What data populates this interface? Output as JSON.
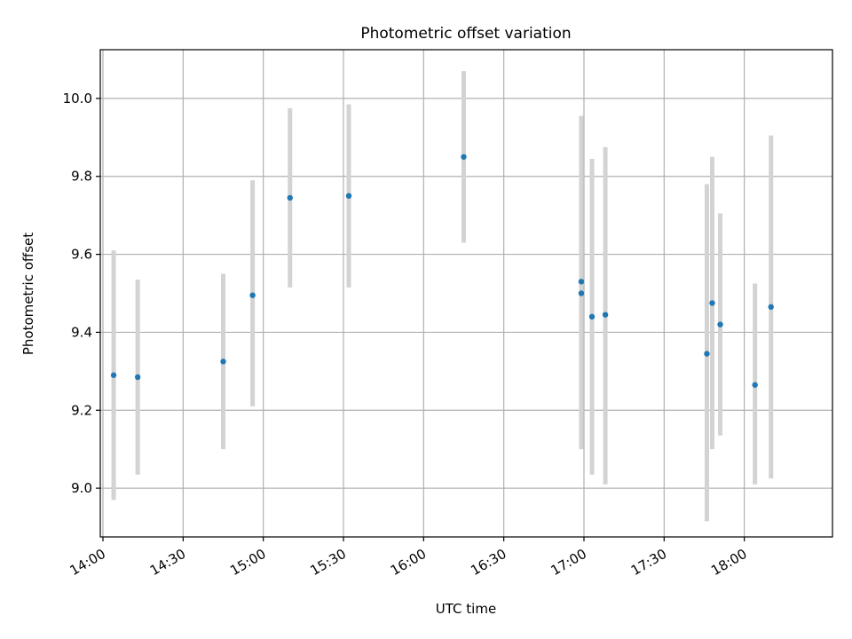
{
  "chart_data": {
    "type": "scatter",
    "title": "Photometric offset variation",
    "xlabel": "UTC time",
    "ylabel": "Photometric offset",
    "x_is_time": true,
    "xlim": [
      "13:59",
      "18:33"
    ],
    "ylim": [
      8.875,
      10.125
    ],
    "xticks": [
      "14:00",
      "14:30",
      "15:00",
      "15:30",
      "16:00",
      "16:30",
      "17:00",
      "17:30",
      "18:00"
    ],
    "yticks": [
      9.0,
      9.2,
      9.4,
      9.6,
      9.8,
      10.0
    ],
    "ytick_labels": [
      "9.0",
      "9.2",
      "9.4",
      "9.6",
      "9.8",
      "10.0"
    ],
    "grid": true,
    "colors": {
      "point": "#1f77b4",
      "errorbar": "#d3d3d3",
      "grid": "#b0b0b0"
    },
    "points": [
      {
        "x": "14:04",
        "y": 9.29,
        "ylow": 8.97,
        "yhigh": 9.61
      },
      {
        "x": "14:13",
        "y": 9.285,
        "ylow": 9.035,
        "yhigh": 9.535
      },
      {
        "x": "14:45",
        "y": 9.325,
        "ylow": 9.1,
        "yhigh": 9.55
      },
      {
        "x": "14:56",
        "y": 9.495,
        "ylow": 9.21,
        "yhigh": 9.79
      },
      {
        "x": "15:10",
        "y": 9.745,
        "ylow": 9.515,
        "yhigh": 9.975
      },
      {
        "x": "15:32",
        "y": 9.75,
        "ylow": 9.515,
        "yhigh": 9.985
      },
      {
        "x": "16:15",
        "y": 9.85,
        "ylow": 9.63,
        "yhigh": 10.07
      },
      {
        "x": "16:59",
        "y": 9.53,
        "ylow": 9.1,
        "yhigh": 9.955
      },
      {
        "x": "16:59",
        "y": 9.5,
        "ylow": 9.1,
        "yhigh": 9.955
      },
      {
        "x": "17:03",
        "y": 9.44,
        "ylow": 9.035,
        "yhigh": 9.845
      },
      {
        "x": "17:08",
        "y": 9.445,
        "ylow": 9.01,
        "yhigh": 9.875
      },
      {
        "x": "17:46",
        "y": 9.345,
        "ylow": 8.915,
        "yhigh": 9.78
      },
      {
        "x": "17:48",
        "y": 9.475,
        "ylow": 9.1,
        "yhigh": 9.85
      },
      {
        "x": "17:51",
        "y": 9.42,
        "ylow": 9.135,
        "yhigh": 9.705
      },
      {
        "x": "18:04",
        "y": 9.265,
        "ylow": 9.01,
        "yhigh": 9.525
      },
      {
        "x": "18:10",
        "y": 9.465,
        "ylow": 9.025,
        "yhigh": 9.905
      }
    ]
  }
}
